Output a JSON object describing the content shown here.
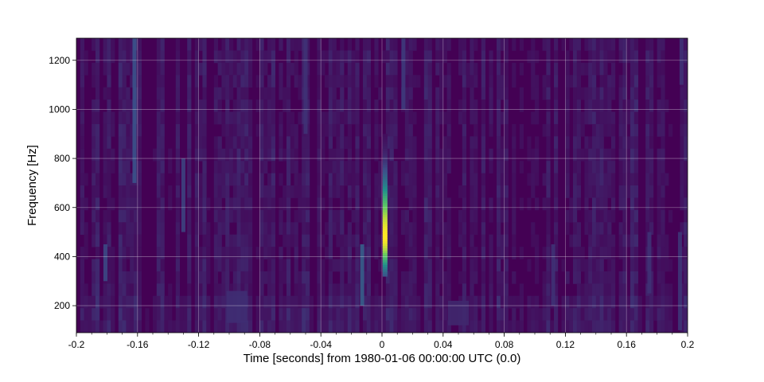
{
  "chart_data": {
    "type": "heatmap",
    "title": "",
    "xlabel": "Time [seconds] from 1980-01-06 00:00:00 UTC (0.0)",
    "ylabel": "Frequency [Hz]",
    "xlim": [
      -0.2,
      0.2
    ],
    "ylim": [
      90,
      1290
    ],
    "x_ticks": [
      -0.2,
      -0.16,
      -0.12,
      -0.08,
      -0.04,
      0,
      0.04,
      0.08,
      0.12,
      0.16,
      0.2
    ],
    "x_tick_labels": [
      "-0.2",
      "-0.16",
      "-0.12",
      "-0.08",
      "-0.04",
      "0",
      "0.04",
      "0.08",
      "0.12",
      "0.16",
      "0.2"
    ],
    "y_ticks": [
      200,
      400,
      600,
      800,
      1000,
      1200
    ],
    "y_tick_labels": [
      "200",
      "400",
      "600",
      "800",
      "1000",
      "1200"
    ],
    "grid": true,
    "colormap": "viridis",
    "background_color": "#440154",
    "features": [
      {
        "kind": "chirp",
        "x": 0.002,
        "y_low": 320,
        "y_high": 900,
        "y_peak": 480,
        "peak_intensity": 1.0
      },
      {
        "kind": "streak",
        "x": -0.162,
        "y_low": 700,
        "y_high": 1290,
        "intensity": 0.25
      },
      {
        "kind": "streak",
        "x": -0.13,
        "y_low": 500,
        "y_high": 800,
        "intensity": 0.2
      },
      {
        "kind": "streak",
        "x": -0.181,
        "y_low": 300,
        "y_high": 450,
        "intensity": 0.22
      },
      {
        "kind": "streak",
        "x": -0.013,
        "y_low": 200,
        "y_high": 450,
        "intensity": 0.3
      },
      {
        "kind": "streak",
        "x": 0.014,
        "y_low": 1000,
        "y_high": 1290,
        "intensity": 0.18
      },
      {
        "kind": "streak",
        "x": -0.05,
        "y_low": 900,
        "y_high": 1290,
        "intensity": 0.15
      },
      {
        "kind": "streak",
        "x": 0.112,
        "y_low": 200,
        "y_high": 450,
        "intensity": 0.15
      },
      {
        "kind": "streak",
        "x": 0.175,
        "y_low": 250,
        "y_high": 500,
        "intensity": 0.15
      },
      {
        "kind": "streak",
        "x": 0.195,
        "y_low": 100,
        "y_high": 500,
        "intensity": 0.16
      },
      {
        "kind": "streak",
        "x": 0.196,
        "y_low": 1100,
        "y_high": 1290,
        "intensity": 0.15
      },
      {
        "kind": "blob",
        "x": -0.095,
        "y_low": 130,
        "y_high": 260,
        "intensity": 0.14
      },
      {
        "kind": "blob",
        "x": 0.05,
        "y_low": 120,
        "y_high": 220,
        "intensity": 0.12
      }
    ]
  }
}
